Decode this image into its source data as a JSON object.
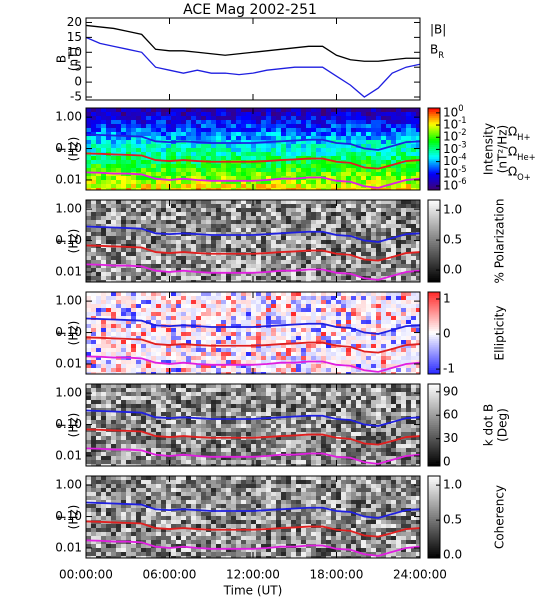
{
  "chart_data": [
    {
      "type": "line",
      "title": "ACE Mag 2002-251",
      "ylabel": [
        "B",
        "(nT)"
      ],
      "x": [
        0,
        1,
        2,
        3,
        4,
        5,
        6,
        7,
        8,
        9,
        10,
        11,
        12,
        13,
        14,
        15,
        16,
        17,
        18,
        19,
        20,
        21,
        22,
        23,
        24
      ],
      "series": [
        {
          "name": "|B|",
          "color": "#000000",
          "values": [
            19,
            18.5,
            18,
            17,
            16,
            11,
            10.5,
            10.5,
            10,
            9.5,
            9,
            9.5,
            10,
            10.5,
            11,
            11.5,
            12,
            12,
            9,
            7.5,
            7,
            7,
            7.5,
            8,
            8
          ]
        },
        {
          "name": "B_R",
          "color": "#1f1fe0",
          "values": [
            15,
            13,
            12,
            11,
            10,
            5,
            4,
            3,
            4,
            3,
            3,
            2.5,
            3,
            4,
            4.5,
            5,
            5,
            5,
            2,
            -1,
            -5,
            -2,
            3,
            5,
            6
          ]
        }
      ],
      "xlim": [
        0,
        24
      ],
      "xticks": [
        0,
        6,
        12,
        18,
        24
      ],
      "ylim": [
        -6,
        21.5
      ],
      "yticks": [
        -5,
        0,
        5,
        10,
        15,
        20
      ]
    },
    {
      "type": "spectrogram",
      "ylabel": [
        "f",
        "(Hz)"
      ],
      "log_y": true,
      "colormap": "jet",
      "x": [
        0,
        1,
        2,
        3,
        4,
        5,
        6,
        7,
        8,
        9,
        10,
        11,
        12,
        13,
        14,
        15,
        16,
        17,
        18,
        19,
        20,
        21,
        22,
        23,
        24
      ],
      "series": [
        {
          "name": "Ω_H+",
          "color": "#1f1fe0",
          "values": [
            0.28,
            0.27,
            0.26,
            0.25,
            0.24,
            0.17,
            0.16,
            0.17,
            0.16,
            0.15,
            0.15,
            0.15,
            0.15,
            0.16,
            0.17,
            0.18,
            0.19,
            0.19,
            0.15,
            0.14,
            0.1,
            0.09,
            0.12,
            0.16,
            0.17
          ]
        },
        {
          "name": "Ω_He+",
          "color": "#e01f1f",
          "values": [
            0.07,
            0.068,
            0.065,
            0.063,
            0.06,
            0.043,
            0.04,
            0.043,
            0.04,
            0.038,
            0.038,
            0.038,
            0.038,
            0.04,
            0.043,
            0.045,
            0.048,
            0.048,
            0.038,
            0.035,
            0.025,
            0.023,
            0.03,
            0.04,
            0.043
          ]
        },
        {
          "name": "Ω_O+",
          "color": "#e01fe0",
          "values": [
            0.0175,
            0.017,
            0.016,
            0.016,
            0.015,
            0.011,
            0.01,
            0.011,
            0.01,
            0.0094,
            0.0094,
            0.0094,
            0.0094,
            0.01,
            0.011,
            0.011,
            0.012,
            0.012,
            0.0094,
            0.0088,
            0.0063,
            0.0056,
            0.0075,
            0.01,
            0.011
          ]
        }
      ],
      "xlim": [
        0,
        24
      ],
      "xticks": [
        0,
        6,
        12,
        18,
        24
      ],
      "ylim": [
        0.0048,
        1.95
      ],
      "yticks": [
        {
          "value": 0.01,
          "label": "0.01"
        },
        {
          "value": 0.1,
          "label": "0.10"
        },
        {
          "value": 1,
          "label": "1.00"
        }
      ],
      "colorbar": {
        "label": [
          "Intensity",
          "(nT²/Hz)"
        ],
        "log": true,
        "lim": [
          4.7e-07,
          2.5
        ],
        "ticks": [
          {
            "value": 1,
            "label": "10^0"
          },
          {
            "value": 0.1,
            "label": "10^-1"
          },
          {
            "value": 0.01,
            "label": "10^-2"
          },
          {
            "value": 0.001,
            "label": "10^-3"
          },
          {
            "value": 0.0001,
            "label": "10^-4"
          },
          {
            "value": 1e-05,
            "label": "10^-5"
          },
          {
            "value": 1e-06,
            "label": "10^-6"
          }
        ]
      }
    },
    {
      "type": "spectrogram",
      "ylabel": [
        "f",
        "(Hz)"
      ],
      "log_y": true,
      "colormap": "gray",
      "x": [
        0,
        1,
        2,
        3,
        4,
        5,
        6,
        7,
        8,
        9,
        10,
        11,
        12,
        13,
        14,
        15,
        16,
        17,
        18,
        19,
        20,
        21,
        22,
        23,
        24
      ],
      "series": [
        {
          "color": "#1f1fe0",
          "values": [
            0.28,
            0.27,
            0.26,
            0.25,
            0.24,
            0.17,
            0.16,
            0.17,
            0.16,
            0.15,
            0.15,
            0.15,
            0.15,
            0.16,
            0.17,
            0.18,
            0.19,
            0.19,
            0.15,
            0.14,
            0.1,
            0.09,
            0.12,
            0.16,
            0.17
          ]
        },
        {
          "color": "#e01f1f",
          "values": [
            0.07,
            0.068,
            0.065,
            0.063,
            0.06,
            0.043,
            0.04,
            0.043,
            0.04,
            0.038,
            0.038,
            0.038,
            0.038,
            0.04,
            0.043,
            0.045,
            0.048,
            0.048,
            0.038,
            0.035,
            0.025,
            0.023,
            0.03,
            0.04,
            0.043
          ]
        },
        {
          "color": "#e01fe0",
          "values": [
            0.0175,
            0.017,
            0.016,
            0.016,
            0.015,
            0.011,
            0.01,
            0.011,
            0.01,
            0.0094,
            0.0094,
            0.0094,
            0.0094,
            0.01,
            0.011,
            0.011,
            0.012,
            0.012,
            0.0094,
            0.0088,
            0.0063,
            0.0056,
            0.0075,
            0.01,
            0.011
          ]
        }
      ],
      "xlim": [
        0,
        24
      ],
      "xticks": [
        0,
        6,
        12,
        18,
        24
      ],
      "ylim": [
        0.0048,
        1.95
      ],
      "yticks": [
        {
          "value": 0.01,
          "label": "0.01"
        },
        {
          "value": 0.1,
          "label": "0.10"
        },
        {
          "value": 1,
          "label": "1.00"
        }
      ],
      "colorbar": {
        "label": [
          "% Polarization"
        ],
        "lim": [
          -0.2,
          1.17
        ],
        "ticks": [
          {
            "value": 0,
            "label": "0.0"
          },
          {
            "value": 0.5,
            "label": "0.5"
          },
          {
            "value": 1,
            "label": "1.0"
          }
        ]
      }
    },
    {
      "type": "spectrogram",
      "ylabel": [
        "f",
        "(Hz)"
      ],
      "log_y": true,
      "colormap": "bwr",
      "x": [
        0,
        1,
        2,
        3,
        4,
        5,
        6,
        7,
        8,
        9,
        10,
        11,
        12,
        13,
        14,
        15,
        16,
        17,
        18,
        19,
        20,
        21,
        22,
        23,
        24
      ],
      "series": [
        {
          "color": "#1f1fe0",
          "values": [
            0.28,
            0.27,
            0.26,
            0.25,
            0.24,
            0.17,
            0.16,
            0.17,
            0.16,
            0.15,
            0.15,
            0.15,
            0.15,
            0.16,
            0.17,
            0.18,
            0.19,
            0.19,
            0.15,
            0.14,
            0.1,
            0.09,
            0.12,
            0.16,
            0.17
          ]
        },
        {
          "color": "#e01f1f",
          "values": [
            0.07,
            0.068,
            0.065,
            0.063,
            0.06,
            0.043,
            0.04,
            0.043,
            0.04,
            0.038,
            0.038,
            0.038,
            0.038,
            0.04,
            0.043,
            0.045,
            0.048,
            0.048,
            0.038,
            0.035,
            0.025,
            0.023,
            0.03,
            0.04,
            0.043
          ]
        },
        {
          "color": "#e01fe0",
          "values": [
            0.0175,
            0.017,
            0.016,
            0.016,
            0.015,
            0.011,
            0.01,
            0.011,
            0.01,
            0.0094,
            0.0094,
            0.0094,
            0.0094,
            0.01,
            0.011,
            0.011,
            0.012,
            0.012,
            0.0094,
            0.0088,
            0.0063,
            0.0056,
            0.0075,
            0.01,
            0.011
          ]
        }
      ],
      "xlim": [
        0,
        24
      ],
      "xticks": [
        0,
        6,
        12,
        18,
        24
      ],
      "ylim": [
        0.0048,
        1.95
      ],
      "yticks": [
        {
          "value": 0.01,
          "label": "0.01"
        },
        {
          "value": 0.1,
          "label": "0.10"
        },
        {
          "value": 1,
          "label": "1.00"
        }
      ],
      "colorbar": {
        "label": [
          "Ellipticity"
        ],
        "lim": [
          -1.14,
          1.2
        ],
        "ticks": [
          -1,
          0,
          1
        ]
      }
    },
    {
      "type": "spectrogram",
      "ylabel": [
        "f",
        "(Hz)"
      ],
      "log_y": true,
      "colormap": "gray",
      "x": [
        0,
        1,
        2,
        3,
        4,
        5,
        6,
        7,
        8,
        9,
        10,
        11,
        12,
        13,
        14,
        15,
        16,
        17,
        18,
        19,
        20,
        21,
        22,
        23,
        24
      ],
      "series": [
        {
          "color": "#1f1fe0",
          "values": [
            0.28,
            0.27,
            0.26,
            0.25,
            0.24,
            0.17,
            0.16,
            0.17,
            0.16,
            0.15,
            0.15,
            0.15,
            0.15,
            0.16,
            0.17,
            0.18,
            0.19,
            0.19,
            0.15,
            0.14,
            0.1,
            0.09,
            0.12,
            0.16,
            0.17
          ]
        },
        {
          "color": "#e01f1f",
          "values": [
            0.07,
            0.068,
            0.065,
            0.063,
            0.06,
            0.043,
            0.04,
            0.043,
            0.04,
            0.038,
            0.038,
            0.038,
            0.038,
            0.04,
            0.043,
            0.045,
            0.048,
            0.048,
            0.038,
            0.035,
            0.025,
            0.023,
            0.03,
            0.04,
            0.043
          ]
        },
        {
          "color": "#e01fe0",
          "values": [
            0.0175,
            0.017,
            0.016,
            0.016,
            0.015,
            0.011,
            0.01,
            0.011,
            0.01,
            0.0094,
            0.0094,
            0.0094,
            0.0094,
            0.01,
            0.011,
            0.011,
            0.012,
            0.012,
            0.0094,
            0.0088,
            0.0063,
            0.0056,
            0.0075,
            0.01,
            0.011
          ]
        }
      ],
      "xlim": [
        0,
        24
      ],
      "xticks": [
        0,
        6,
        12,
        18,
        24
      ],
      "ylim": [
        0.0048,
        1.95
      ],
      "yticks": [
        {
          "value": 0.01,
          "label": "0.01"
        },
        {
          "value": 0.1,
          "label": "0.10"
        },
        {
          "value": 1,
          "label": "1.00"
        }
      ],
      "colorbar": {
        "label": [
          "k dot B",
          "(Deg)"
        ],
        "lim": [
          -5,
          100
        ],
        "ticks": [
          0,
          30,
          60,
          90
        ]
      }
    },
    {
      "type": "spectrogram",
      "ylabel": [
        "f",
        "(Hz)"
      ],
      "log_y": true,
      "colormap": "gray",
      "x": [
        0,
        1,
        2,
        3,
        4,
        5,
        6,
        7,
        8,
        9,
        10,
        11,
        12,
        13,
        14,
        15,
        16,
        17,
        18,
        19,
        20,
        21,
        22,
        23,
        24
      ],
      "series": [
        {
          "color": "#1f1fe0",
          "values": [
            0.28,
            0.27,
            0.26,
            0.25,
            0.24,
            0.17,
            0.16,
            0.17,
            0.16,
            0.15,
            0.15,
            0.15,
            0.15,
            0.16,
            0.17,
            0.18,
            0.19,
            0.19,
            0.15,
            0.14,
            0.1,
            0.09,
            0.12,
            0.16,
            0.17
          ]
        },
        {
          "color": "#e01f1f",
          "values": [
            0.07,
            0.068,
            0.065,
            0.063,
            0.06,
            0.043,
            0.04,
            0.043,
            0.04,
            0.038,
            0.038,
            0.038,
            0.038,
            0.04,
            0.043,
            0.045,
            0.048,
            0.048,
            0.038,
            0.035,
            0.025,
            0.023,
            0.03,
            0.04,
            0.043
          ]
        },
        {
          "color": "#e01fe0",
          "values": [
            0.0175,
            0.017,
            0.016,
            0.016,
            0.015,
            0.011,
            0.01,
            0.011,
            0.01,
            0.0094,
            0.0094,
            0.0094,
            0.0094,
            0.01,
            0.011,
            0.011,
            0.012,
            0.012,
            0.0094,
            0.0088,
            0.0063,
            0.0056,
            0.0075,
            0.01,
            0.011
          ]
        }
      ],
      "xlim": [
        0,
        24
      ],
      "xticks": [
        {
          "value": 0,
          "label": "00:00:00"
        },
        {
          "value": 6,
          "label": "06:00:00"
        },
        {
          "value": 12,
          "label": "12:00:00"
        },
        {
          "value": 18,
          "label": "18:00:00"
        },
        {
          "value": 24,
          "label": "24:00:00"
        }
      ],
      "xlabel": "Time (UT)",
      "ylim": [
        0.0048,
        1.95
      ],
      "yticks": [
        {
          "value": 0.01,
          "label": "0.01"
        },
        {
          "value": 0.1,
          "label": "0.10"
        },
        {
          "value": 1,
          "label": "1.00"
        }
      ],
      "colorbar": {
        "label": [
          "Coherency"
        ],
        "lim": [
          -0.04,
          1.13
        ],
        "ticks": [
          {
            "value": 0,
            "label": "0.0"
          },
          {
            "value": 0.5,
            "label": "0.5"
          },
          {
            "value": 1,
            "label": "1.0"
          }
        ]
      }
    }
  ]
}
